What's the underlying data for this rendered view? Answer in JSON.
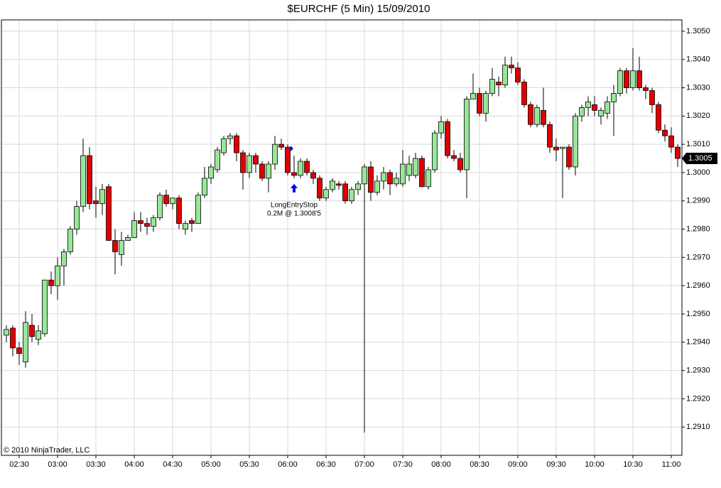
{
  "chart_data": {
    "type": "candlestick",
    "title": "$EURCHF (5 Min)  15/09/2010",
    "copyright": "© 2010 NinjaTrader, LLC",
    "x": [
      "02:20",
      "02:25",
      "02:30",
      "02:35",
      "02:40",
      "02:45",
      "02:50",
      "02:55",
      "03:00",
      "03:05",
      "03:10",
      "03:15",
      "03:20",
      "03:25",
      "03:30",
      "03:35",
      "03:40",
      "03:45",
      "03:50",
      "03:55",
      "04:00",
      "04:05",
      "04:10",
      "04:15",
      "04:20",
      "04:25",
      "04:30",
      "04:35",
      "04:40",
      "04:45",
      "04:50",
      "04:55",
      "05:00",
      "05:05",
      "05:10",
      "05:15",
      "05:20",
      "05:25",
      "05:30",
      "05:35",
      "05:40",
      "05:45",
      "05:50",
      "05:55",
      "06:00",
      "06:05",
      "06:10",
      "06:15",
      "06:20",
      "06:25",
      "06:30",
      "06:35",
      "06:40",
      "06:45",
      "06:50",
      "06:55",
      "07:00",
      "07:05",
      "07:10",
      "07:15",
      "07:20",
      "07:25",
      "07:30",
      "07:35",
      "07:40",
      "07:45",
      "07:50",
      "07:55",
      "08:00",
      "08:05",
      "08:10",
      "08:15",
      "08:20",
      "08:25",
      "08:30",
      "08:35",
      "08:40",
      "08:45",
      "08:50",
      "08:55",
      "09:00",
      "09:05",
      "09:10",
      "09:15",
      "09:20",
      "09:25",
      "09:30",
      "09:35",
      "09:40",
      "09:45",
      "09:50",
      "09:55",
      "10:00",
      "10:05",
      "10:10",
      "10:15",
      "10:20",
      "10:25",
      "10:30",
      "10:35",
      "10:40",
      "10:45",
      "10:50",
      "10:55",
      "11:00",
      "11:05"
    ],
    "open": [
      1.29425,
      1.2945,
      1.2938,
      1.2933,
      1.2946,
      1.2941,
      1.2943,
      1.2962,
      1.296,
      1.2967,
      1.2972,
      1.298,
      1.2988,
      1.3006,
      1.299,
      1.2989,
      1.2995,
      1.2976,
      1.2971,
      1.2976,
      1.2977,
      1.2983,
      1.2982,
      1.2981,
      1.2984,
      1.2992,
      1.2989,
      1.2991,
      1.298,
      1.2983,
      1.2982,
      1.2992,
      1.2998,
      1.3001,
      1.3007,
      1.3012,
      1.3013,
      1.3007,
      1.3,
      1.3006,
      1.3003,
      1.2998,
      1.3003,
      1.301,
      1.3009,
      1.3,
      1.2999,
      1.3004,
      1.3,
      1.2998,
      1.2991,
      1.2994,
      1.2996,
      1.2996,
      1.299,
      1.2994,
      1.2996,
      1.3002,
      1.2993,
      1.2997,
      1.3,
      1.2996,
      1.2996,
      1.2999,
      1.2999,
      1.3005,
      1.2995,
      1.3001,
      1.3014,
      1.3018,
      1.3006,
      1.3005,
      1.3001,
      1.3026,
      1.3028,
      1.3021,
      1.3028,
      1.3032,
      1.3031,
      1.3038,
      1.3037,
      1.3032,
      1.3024,
      1.3017,
      1.3022,
      1.3017,
      1.3009,
      1.30085,
      1.3009,
      1.3002,
      1.302,
      1.3023,
      1.3024,
      1.302,
      1.3021,
      1.3025,
      1.3028,
      1.3036,
      1.303,
      1.3036,
      1.303,
      1.3029,
      1.3024,
      1.3015,
      1.3013,
      1.3009
    ],
    "high": [
      1.2946,
      1.2946,
      1.294,
      1.2951,
      1.295,
      1.2946,
      1.2962,
      1.2965,
      1.297,
      1.2973,
      1.2981,
      1.299,
      1.3012,
      1.3009,
      1.2995,
      1.2996,
      1.2996,
      1.298,
      1.2979,
      1.2978,
      1.2986,
      1.2986,
      1.2984,
      1.2985,
      1.2993,
      1.2994,
      1.2991,
      1.2992,
      1.2983,
      1.2984,
      1.2993,
      1.3002,
      1.3003,
      1.3009,
      1.3013,
      1.3014,
      1.3014,
      1.3008,
      1.3007,
      1.3007,
      1.3004,
      1.3004,
      1.3013,
      1.3012,
      1.301,
      1.3006,
      1.3005,
      1.3005,
      1.3001,
      1.2999,
      1.2995,
      1.2998,
      1.2997,
      1.2997,
      1.2995,
      1.2997,
      1.3003,
      1.3004,
      1.2999,
      1.3002,
      1.3001,
      1.3,
      1.3008,
      1.3006,
      1.3007,
      1.3006,
      1.3002,
      1.3015,
      1.302,
      1.3019,
      1.3008,
      1.3007,
      1.3027,
      1.3035,
      1.303,
      1.3029,
      1.3037,
      1.3034,
      1.3041,
      1.3041,
      1.3039,
      1.3033,
      1.3025,
      1.3024,
      1.303,
      1.3018,
      1.3012,
      1.3009,
      1.301,
      1.3021,
      1.3024,
      1.3027,
      1.3027,
      1.3023,
      1.3027,
      1.3031,
      1.3037,
      1.3037,
      1.3044,
      1.3041,
      1.3031,
      1.303,
      1.3025,
      1.3017,
      1.3016,
      1.301
    ],
    "low": [
      1.294,
      1.2935,
      1.2932,
      1.2931,
      1.294,
      1.2939,
      1.2942,
      1.2957,
      1.2955,
      1.296,
      1.2971,
      1.2978,
      1.2986,
      1.2987,
      1.2984,
      1.2985,
      1.2976,
      1.2964,
      1.2967,
      1.2976,
      1.2977,
      1.2979,
      1.2978,
      1.2979,
      1.2983,
      1.2988,
      1.2987,
      1.298,
      1.2978,
      1.2979,
      1.2982,
      1.2991,
      1.2996,
      1.3,
      1.3006,
      1.301,
      1.3004,
      1.2994,
      1.2998,
      1.3,
      1.2997,
      1.2993,
      1.3001,
      1.3008,
      1.2999,
      1.2998,
      1.2998,
      1.2999,
      1.2996,
      1.299,
      1.299,
      1.2993,
      1.2994,
      1.2989,
      1.2989,
      1.2992,
      1.2908,
      1.299,
      1.2992,
      1.2994,
      1.2992,
      1.2995,
      1.2995,
      1.2997,
      1.2998,
      1.2995,
      1.2994,
      1.3,
      1.3012,
      1.3005,
      1.3004,
      1.3,
      1.2991,
      1.3026,
      1.302,
      1.3018,
      1.3027,
      1.3027,
      1.303,
      1.3035,
      1.3031,
      1.3023,
      1.3016,
      1.3016,
      1.3016,
      1.3007,
      1.3004,
      1.2991,
      1.3001,
      1.2999,
      1.3018,
      1.302,
      1.302,
      1.3017,
      1.3019,
      1.3013,
      1.3027,
      1.3028,
      1.3029,
      1.3029,
      1.3026,
      1.3021,
      1.3014,
      1.3011,
      1.3007,
      1.3002
    ],
    "close": [
      1.29445,
      1.2938,
      1.2936,
      1.2947,
      1.2942,
      1.2944,
      1.2962,
      1.296,
      1.2967,
      1.2972,
      1.298,
      1.2988,
      1.3006,
      1.2989,
      1.2989,
      1.2994,
      1.2976,
      1.2972,
      1.2976,
      1.2977,
      1.2983,
      1.2982,
      1.2981,
      1.2984,
      1.2992,
      1.2989,
      1.2991,
      1.2982,
      1.2982,
      1.2982,
      1.2992,
      1.2998,
      1.3002,
      1.3008,
      1.3012,
      1.3013,
      1.3007,
      1.3,
      1.3006,
      1.3003,
      1.2998,
      1.3003,
      1.301,
      1.3009,
      1.3,
      1.2999,
      1.3004,
      1.3,
      1.2998,
      1.2991,
      1.2994,
      1.2997,
      1.29955,
      1.299,
      1.2994,
      1.2996,
      1.3002,
      1.2993,
      1.2997,
      1.3,
      1.2996,
      1.2998,
      1.3003,
      1.3003,
      1.3005,
      1.2995,
      1.3001,
      1.3014,
      1.3018,
      1.3006,
      1.3005,
      1.3001,
      1.3026,
      1.3028,
      1.3021,
      1.3028,
      1.3033,
      1.3031,
      1.3038,
      1.3037,
      1.3032,
      1.3024,
      1.3017,
      1.3023,
      1.3017,
      1.3009,
      1.3008,
      1.3009,
      1.3002,
      1.302,
      1.3023,
      1.3025,
      1.3022,
      1.3022,
      1.3025,
      1.3028,
      1.3036,
      1.303,
      1.3036,
      1.303,
      1.3029,
      1.3024,
      1.3015,
      1.3013,
      1.3009,
      1.3005
    ],
    "up_color": "#98e698",
    "down_color": "#e00000",
    "ylim": [
      1.29,
      1.3054
    ],
    "yticks": [
      {
        "value": 1.291,
        "label": "1.2910"
      },
      {
        "value": 1.292,
        "label": "1.2920"
      },
      {
        "value": 1.293,
        "label": "1.2930"
      },
      {
        "value": 1.294,
        "label": "1.2940"
      },
      {
        "value": 1.295,
        "label": "1.2950"
      },
      {
        "value": 1.296,
        "label": "1.2960"
      },
      {
        "value": 1.297,
        "label": "1.2970"
      },
      {
        "value": 1.298,
        "label": "1.2980"
      },
      {
        "value": 1.299,
        "label": "1.2990"
      },
      {
        "value": 1.3,
        "label": "1.3000"
      },
      {
        "value": 1.301,
        "label": "1.3010"
      },
      {
        "value": 1.302,
        "label": "1.3020"
      },
      {
        "value": 1.303,
        "label": "1.3030"
      },
      {
        "value": 1.304,
        "label": "1.3040"
      },
      {
        "value": 1.305,
        "label": "1.3050"
      }
    ],
    "xticks": [
      "02:30",
      "03:00",
      "03:30",
      "04:00",
      "04:30",
      "05:00",
      "05:30",
      "06:00",
      "06:30",
      "07:00",
      "07:30",
      "08:00",
      "08:30",
      "09:00",
      "09:30",
      "10:00",
      "10:30",
      "11:00"
    ],
    "grid": true,
    "last_price": 1.3005,
    "annotation": {
      "x": "06:05",
      "text": "LongEntryStop",
      "detail": "0.2M @ 1.3008'5",
      "color": "#0000ee"
    }
  }
}
